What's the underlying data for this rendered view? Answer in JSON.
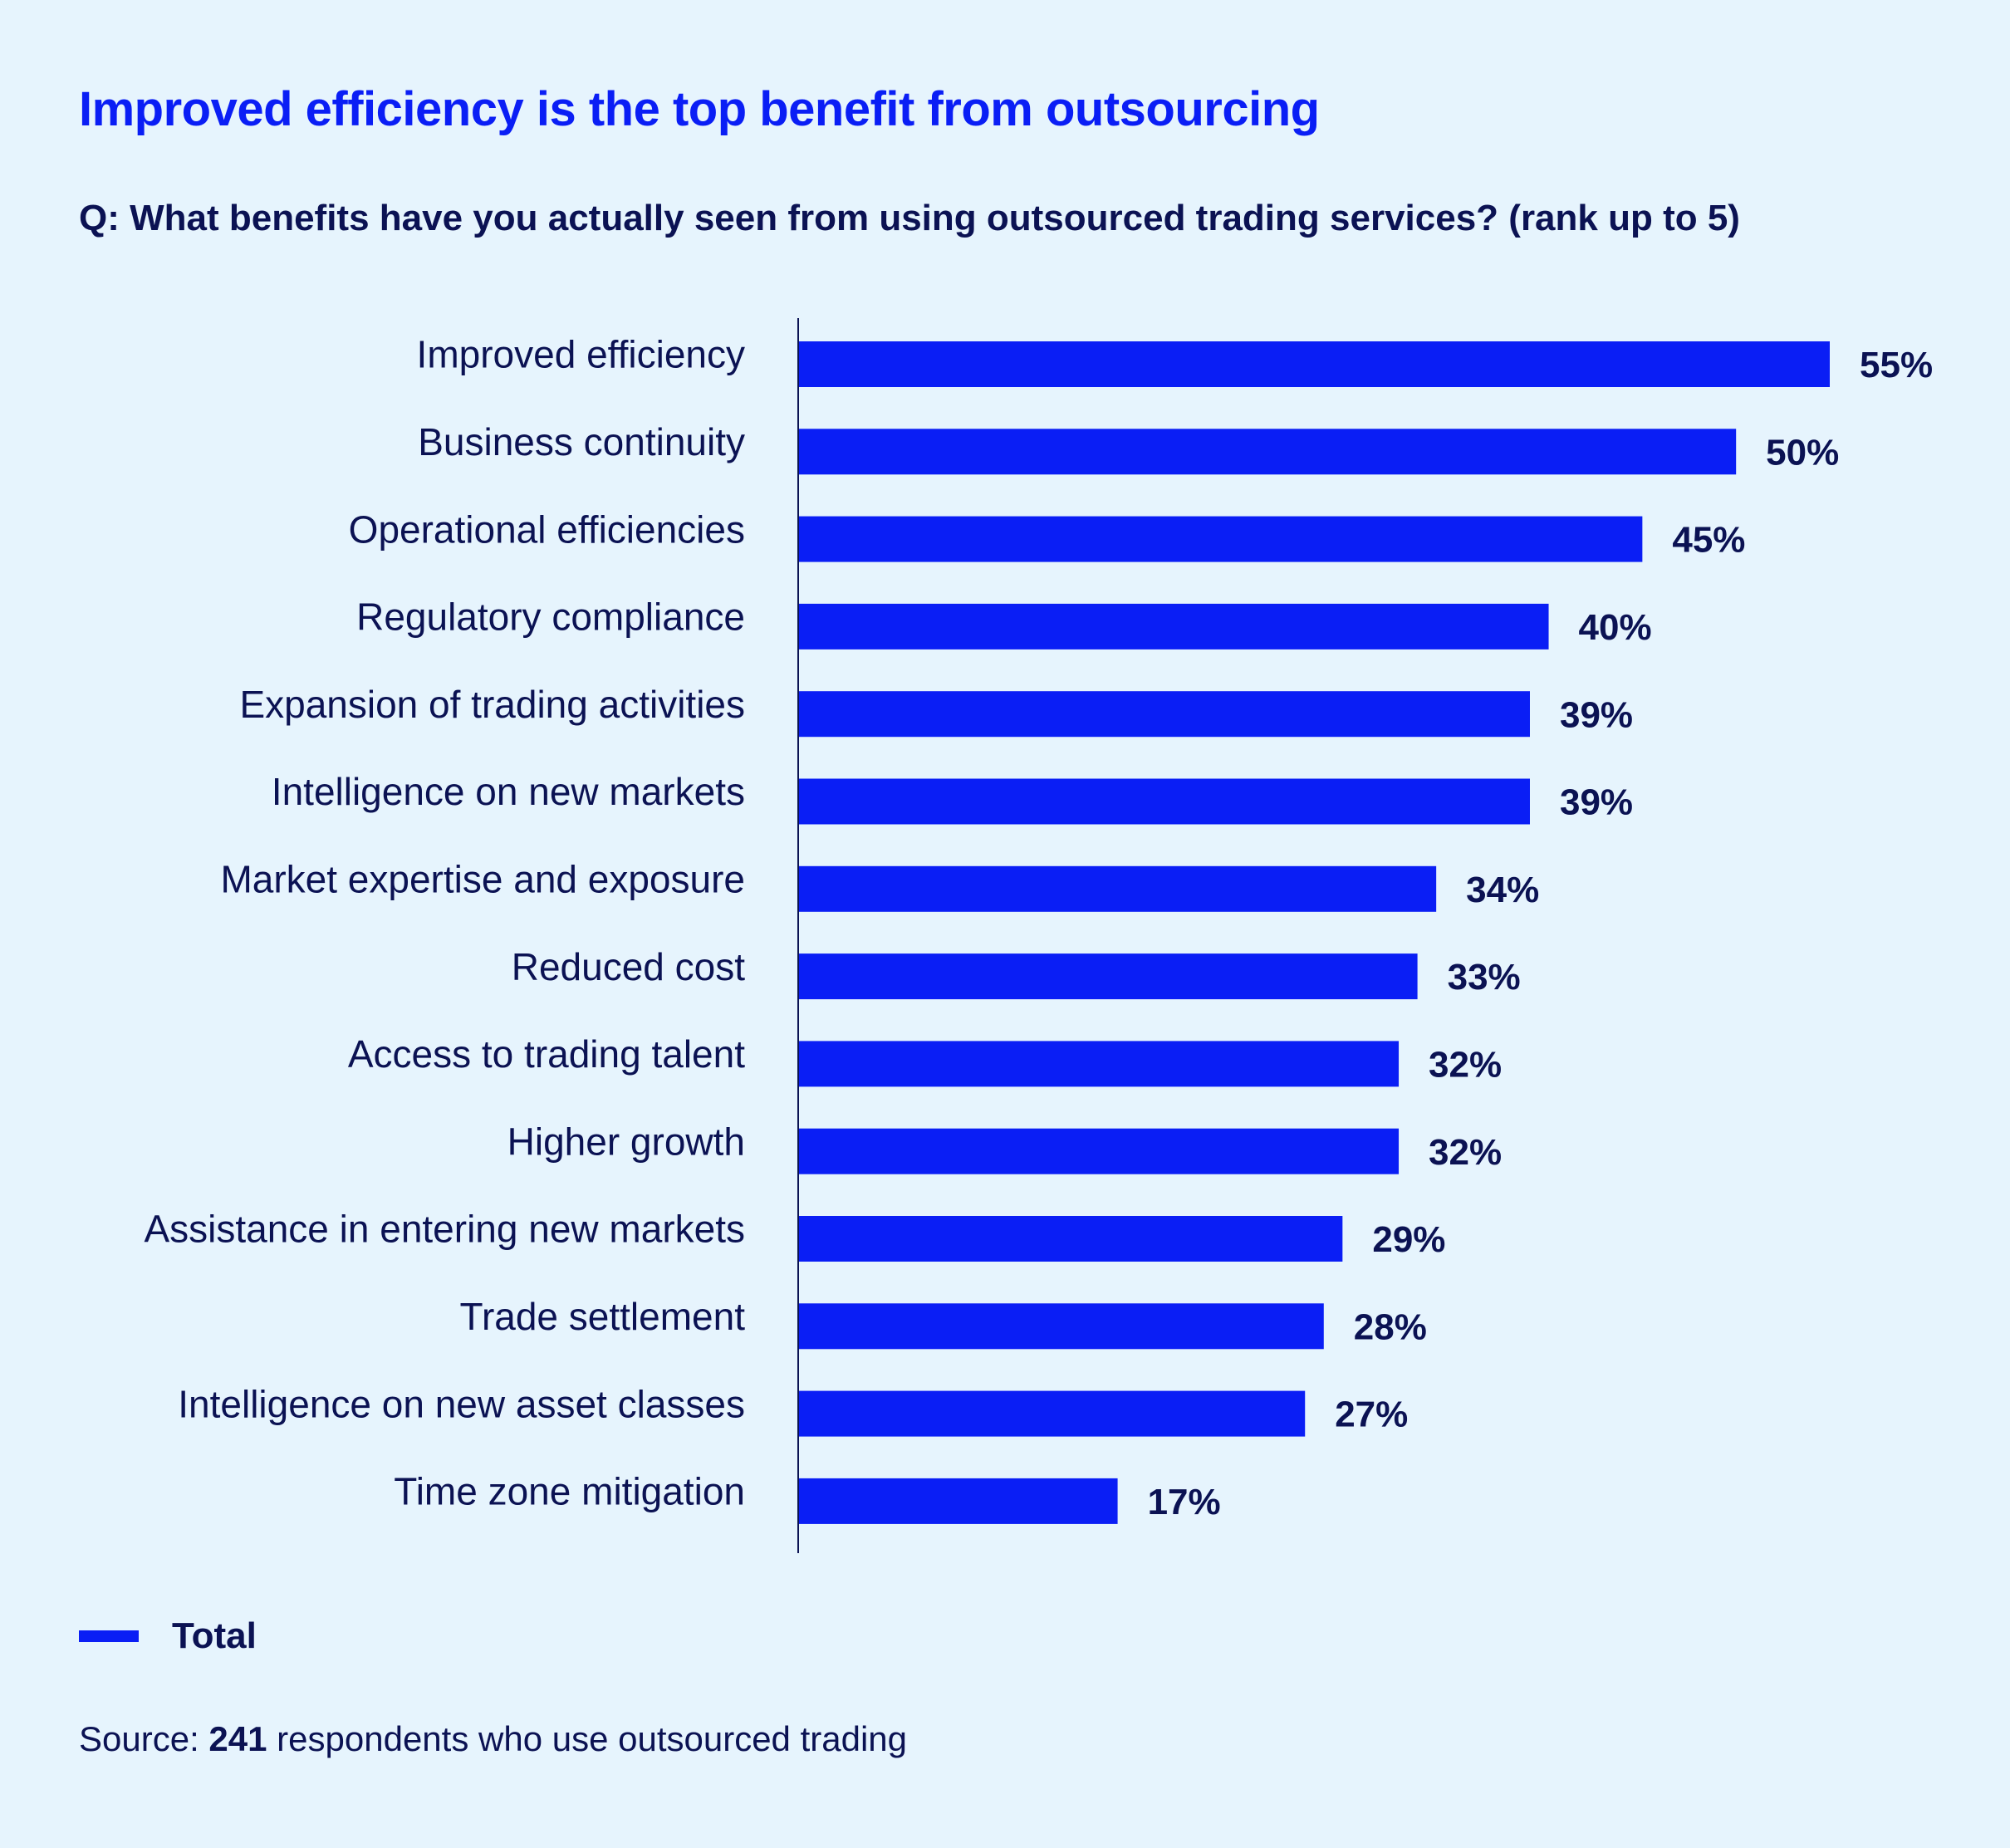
{
  "chart_data": {
    "type": "bar",
    "orientation": "horizontal",
    "title": "Improved efficiency is the top benefit from outsourcing",
    "subtitle": "Q: What benefits have you actually seen from using outsourced trading services? (rank up to 5)",
    "categories": [
      "Improved efficiency",
      "Business continuity",
      "Operational efficiencies",
      "Regulatory compliance",
      "Expansion of trading activities",
      "Intelligence on new markets",
      "Market expertise and exposure",
      "Reduced cost",
      "Access to trading talent",
      "Higher growth",
      "Assistance in entering new markets",
      "Trade settlement",
      "Intelligence on new asset classes",
      "Time zone mitigation"
    ],
    "series": [
      {
        "name": "Total",
        "color": "#0a1ef5",
        "values": [
          55,
          50,
          45,
          40,
          39,
          39,
          34,
          33,
          32,
          32,
          29,
          28,
          27,
          17
        ]
      }
    ],
    "value_format": "{v}%",
    "xlabel": "",
    "ylabel": "",
    "xlim": [
      0,
      55
    ],
    "grid": false,
    "legend": {
      "position": "bottom-left",
      "entries": [
        "Total"
      ]
    }
  },
  "source": {
    "prefix": "Source: ",
    "count": "241",
    "suffix": " respondents who use outsourced trading"
  }
}
